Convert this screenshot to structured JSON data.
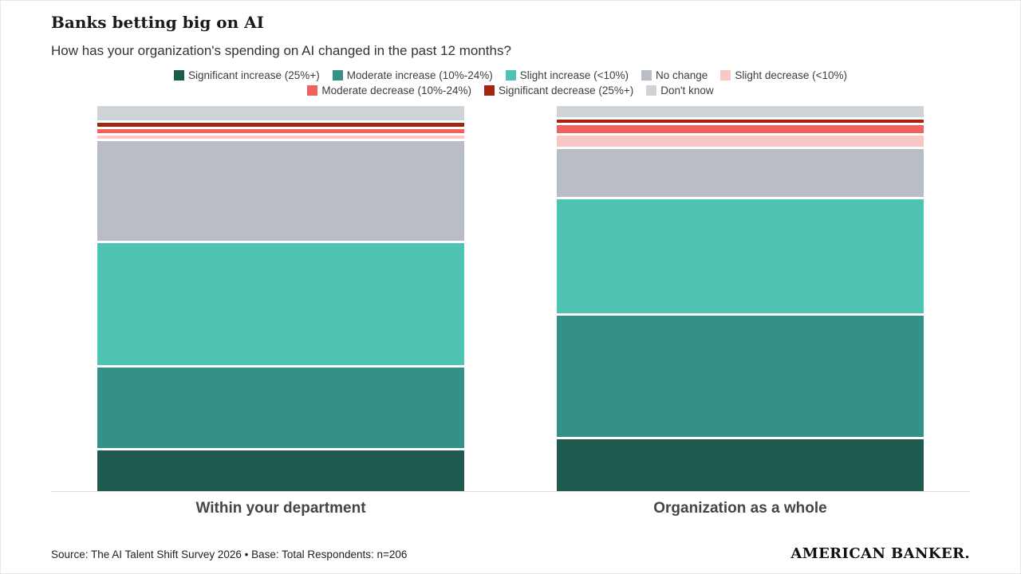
{
  "header": {
    "title": "Banks betting big on AI",
    "subtitle": "How has your organization's spending on AI changed in the past 12 months?"
  },
  "footer": {
    "source": "Source: The AI Talent Shift Survey 2026 • Base: Total Respondents: n=206",
    "brand": "AMERICAN BANKER."
  },
  "chart_data": {
    "type": "bar",
    "stacked": true,
    "orientation": "vertical",
    "unit": "percent",
    "ylim": [
      0,
      100
    ],
    "grid": false,
    "legend_position": "top",
    "legend_rows": [
      [
        0,
        1,
        2,
        3,
        4
      ],
      [
        5,
        6,
        7
      ]
    ],
    "categories": [
      "Within your department",
      "Organization as a whole"
    ],
    "series": [
      {
        "name": "Significant increase (25%+)",
        "color": "#1e5a50",
        "values": [
          11,
          14
        ]
      },
      {
        "name": "Moderate increase (10%-24%)",
        "color": "#339187",
        "values": [
          22,
          33
        ]
      },
      {
        "name": "Slight increase (<10%)",
        "color": "#4ec3b1",
        "values": [
          33,
          31
        ]
      },
      {
        "name": "No change",
        "color": "#b9bec4",
        "values": [
          27,
          13
        ]
      },
      {
        "name": "Slight decrease (<10%)",
        "color": "#f8c8c6",
        "values": [
          1,
          3
        ]
      },
      {
        "name": "Moderate decrease (10%-24%)",
        "color": "#f0625e",
        "values": [
          1,
          2
        ]
      },
      {
        "name": "Significant decrease (25%+)",
        "color": "#a3240f",
        "values": [
          1,
          1
        ]
      },
      {
        "name": "Don't know",
        "color": "#ced3d8",
        "values": [
          4,
          3
        ]
      }
    ]
  }
}
